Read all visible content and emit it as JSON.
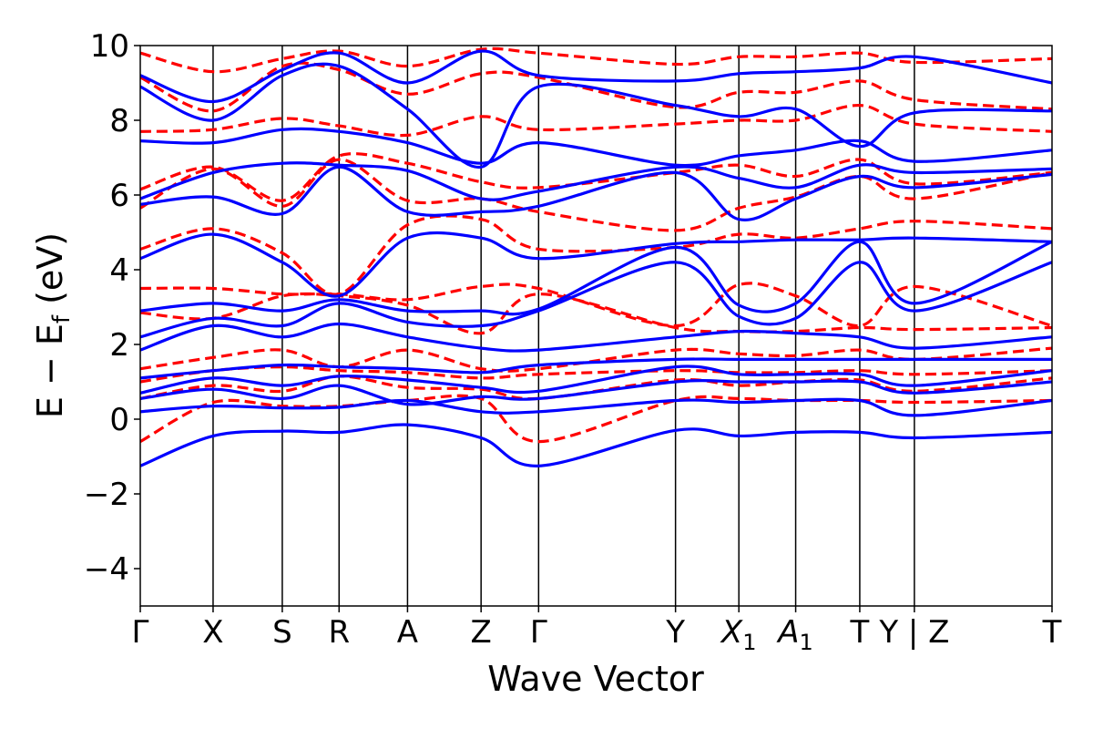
{
  "chart_data": {
    "type": "line",
    "xlabel": "Wave Vector",
    "ylabel": "E − E",
    "ylabel_subscript": "f",
    "ylabel_unit": " (eV)",
    "ylim": [
      -5,
      10
    ],
    "xlim": [
      0,
      12.52
    ],
    "yticks": [
      -4,
      -2,
      0,
      2,
      4,
      6,
      8,
      10
    ],
    "ytick_labels": [
      "−4",
      "−2",
      "0",
      "2",
      "4",
      "6",
      "8",
      "10"
    ],
    "kpoints": [
      {
        "x": 0.0,
        "label": "Γ"
      },
      {
        "x": 1.0,
        "label": "X"
      },
      {
        "x": 1.95,
        "label": "S"
      },
      {
        "x": 2.73,
        "label": "R"
      },
      {
        "x": 3.67,
        "label": "A"
      },
      {
        "x": 4.68,
        "label": "Z"
      },
      {
        "x": 5.47,
        "label": "Γ"
      },
      {
        "x": 7.35,
        "label": "Y"
      },
      {
        "x": 8.22,
        "label": "X",
        "sub": "1"
      },
      {
        "x": 9.0,
        "label": "A",
        "sub": "1"
      },
      {
        "x": 9.88,
        "label": "T"
      },
      {
        "x": 10.63,
        "label": "Y | Z"
      },
      {
        "x": 12.52,
        "label": "T"
      }
    ],
    "grid": false,
    "series": [
      {
        "style": "solid",
        "color": "#0000ff",
        "bands": [
          [
            -1.25,
            -0.45,
            -0.32,
            -0.35,
            -0.15,
            -0.5,
            -1.25,
            -0.3,
            -0.45,
            -0.35,
            -0.35,
            -0.5,
            -0.35
          ],
          [
            0.2,
            0.35,
            0.3,
            0.32,
            0.5,
            0.2,
            0.2,
            0.5,
            0.45,
            0.5,
            0.5,
            0.1,
            0.5
          ],
          [
            0.55,
            0.8,
            0.55,
            0.9,
            0.4,
            0.6,
            0.55,
            1.0,
            1.0,
            1.0,
            1.0,
            0.7,
            1.0
          ],
          [
            0.7,
            1.1,
            0.9,
            1.15,
            1.05,
            0.85,
            0.75,
            1.4,
            1.2,
            1.2,
            1.2,
            0.9,
            1.3
          ],
          [
            1.1,
            1.3,
            1.45,
            1.4,
            1.35,
            1.25,
            1.45,
            1.6,
            1.6,
            1.6,
            1.6,
            1.6,
            1.6
          ],
          [
            1.85,
            2.5,
            2.2,
            2.55,
            2.2,
            1.9,
            1.85,
            2.2,
            2.35,
            2.3,
            2.2,
            1.9,
            2.2
          ],
          [
            2.2,
            2.7,
            2.5,
            3.1,
            2.6,
            2.5,
            2.9,
            4.2,
            2.75,
            2.7,
            4.2,
            2.9,
            4.2
          ],
          [
            2.9,
            3.1,
            2.9,
            3.2,
            2.9,
            2.9,
            2.95,
            4.6,
            3.05,
            3.1,
            4.75,
            3.1,
            4.75
          ],
          [
            4.3,
            4.95,
            4.2,
            3.3,
            4.85,
            4.85,
            4.3,
            4.7,
            4.75,
            4.8,
            4.8,
            4.85,
            4.75
          ],
          [
            5.75,
            5.95,
            5.5,
            6.75,
            5.55,
            5.55,
            5.7,
            6.6,
            5.35,
            5.9,
            6.5,
            6.2,
            6.55
          ],
          [
            5.9,
            6.6,
            6.85,
            6.8,
            6.65,
            5.9,
            6.1,
            6.75,
            6.45,
            6.2,
            6.8,
            6.6,
            6.7
          ],
          [
            7.45,
            7.4,
            7.75,
            7.7,
            7.4,
            6.85,
            7.4,
            6.8,
            7.05,
            7.2,
            7.45,
            6.9,
            7.2
          ],
          [
            8.9,
            8.0,
            9.2,
            9.45,
            8.3,
            6.75,
            8.9,
            8.4,
            8.1,
            8.3,
            7.3,
            8.2,
            8.25
          ],
          [
            9.2,
            8.5,
            9.35,
            9.8,
            9.0,
            9.85,
            9.2,
            9.05,
            9.25,
            9.3,
            9.4,
            9.7,
            9.0
          ]
        ]
      },
      {
        "style": "dashed",
        "color": "#ff0000",
        "bands": [
          [
            -0.6,
            0.45,
            0.35,
            0.35,
            0.5,
            0.55,
            -0.6,
            0.5,
            0.55,
            0.5,
            0.5,
            0.45,
            0.5
          ],
          [
            0.55,
            0.9,
            0.75,
            1.15,
            0.85,
            0.8,
            0.55,
            1.05,
            0.9,
            1.0,
            1.05,
            0.75,
            1.1
          ],
          [
            1.0,
            1.3,
            1.4,
            1.3,
            1.25,
            1.1,
            1.2,
            1.3,
            1.25,
            1.25,
            1.3,
            1.2,
            1.3
          ],
          [
            1.35,
            1.65,
            1.85,
            1.4,
            1.85,
            1.35,
            1.35,
            1.85,
            1.75,
            1.7,
            1.85,
            1.6,
            1.9
          ],
          [
            2.85,
            2.7,
            3.3,
            3.3,
            3.05,
            2.3,
            3.35,
            2.45,
            2.35,
            2.35,
            2.45,
            2.4,
            2.45
          ],
          [
            3.5,
            3.5,
            3.35,
            3.35,
            3.2,
            3.55,
            3.5,
            2.5,
            3.6,
            3.3,
            2.5,
            3.55,
            2.5
          ],
          [
            4.55,
            5.1,
            4.45,
            3.35,
            5.2,
            5.35,
            4.55,
            4.6,
            4.95,
            4.85,
            5.1,
            5.3,
            5.1
          ],
          [
            5.65,
            6.7,
            5.7,
            6.95,
            5.85,
            5.9,
            5.55,
            5.05,
            5.65,
            5.95,
            6.5,
            5.9,
            6.6
          ],
          [
            6.15,
            6.75,
            5.85,
            7.05,
            6.85,
            6.35,
            6.2,
            6.6,
            6.8,
            6.5,
            6.95,
            6.3,
            6.6
          ],
          [
            7.7,
            7.75,
            8.05,
            7.85,
            7.6,
            8.1,
            7.75,
            7.9,
            8.0,
            8.0,
            8.4,
            7.9,
            7.7
          ],
          [
            9.15,
            8.25,
            9.45,
            9.35,
            8.7,
            9.25,
            9.15,
            8.35,
            8.75,
            8.75,
            9.05,
            8.55,
            8.3
          ],
          [
            9.8,
            9.3,
            9.65,
            9.85,
            9.45,
            9.9,
            9.8,
            9.5,
            9.7,
            9.7,
            9.8,
            9.55,
            9.65
          ]
        ]
      }
    ]
  }
}
